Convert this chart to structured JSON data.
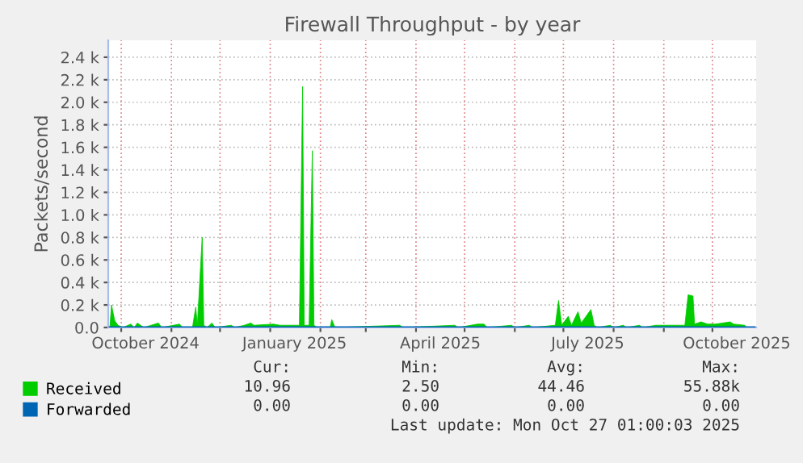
{
  "chart_data": {
    "type": "area",
    "title": "Firewall Throughput - by year",
    "ylabel": "Packets/second",
    "series": [
      {
        "name": "Received",
        "color": "#00cc00",
        "x": [
          "2024-09-24",
          "2024-09-25",
          "2024-09-27",
          "2024-09-29",
          "2024-10-02",
          "2024-10-07",
          "2024-10-09",
          "2024-10-11",
          "2024-10-13",
          "2024-10-15",
          "2024-10-24",
          "2024-10-26",
          "2024-11-06",
          "2024-11-08",
          "2024-11-14",
          "2024-11-16",
          "2024-11-17",
          "2024-11-20",
          "2024-11-21",
          "2024-11-23",
          "2024-11-26",
          "2024-11-28",
          "2024-12-08",
          "2024-12-10",
          "2024-12-16",
          "2024-12-20",
          "2024-12-22",
          "2025-01-03",
          "2025-01-07",
          "2025-01-19",
          "2025-01-21",
          "2025-01-22",
          "2025-01-25",
          "2025-01-27",
          "2025-01-28",
          "2025-01-30",
          "2025-02-07",
          "2025-02-08",
          "2025-02-10",
          "2025-03-22",
          "2025-03-24",
          "2025-04-25",
          "2025-04-27",
          "2025-05-09",
          "2025-05-13",
          "2025-05-15",
          "2025-05-30",
          "2025-06-01",
          "2025-06-10",
          "2025-06-12",
          "2025-06-26",
          "2025-06-28",
          "2025-06-30",
          "2025-07-04",
          "2025-07-06",
          "2025-07-10",
          "2025-07-12",
          "2025-07-18",
          "2025-07-20",
          "2025-07-22",
          "2025-07-30",
          "2025-08-01",
          "2025-08-07",
          "2025-08-09",
          "2025-08-17",
          "2025-08-19",
          "2025-08-27",
          "2025-09-14",
          "2025-09-16",
          "2025-09-19",
          "2025-09-20",
          "2025-09-24",
          "2025-09-28",
          "2025-10-03",
          "2025-10-12",
          "2025-10-14",
          "2025-10-21",
          "2025-10-22"
        ],
        "values": [
          0,
          200,
          60,
          20,
          0,
          30,
          0,
          40,
          20,
          0,
          40,
          0,
          30,
          0,
          0,
          180,
          20,
          800,
          20,
          0,
          40,
          0,
          20,
          0,
          20,
          40,
          20,
          30,
          20,
          20,
          2140,
          20,
          20,
          1570,
          20,
          0,
          0,
          70,
          0,
          20,
          0,
          20,
          0,
          30,
          30,
          0,
          20,
          0,
          20,
          0,
          20,
          240,
          20,
          100,
          20,
          140,
          40,
          160,
          20,
          0,
          20,
          0,
          20,
          0,
          20,
          0,
          20,
          20,
          290,
          280,
          30,
          50,
          30,
          30,
          50,
          30,
          20,
          0
        ]
      },
      {
        "name": "Forwarded",
        "color": "#0066b3",
        "type": "line",
        "x": [
          "2024-09-24",
          "2025-10-27"
        ],
        "values": [
          0,
          0
        ]
      }
    ],
    "xlim": [
      "2024-09-23",
      "2025-10-28"
    ],
    "xticks": [
      {
        "value": "2024-10-01",
        "label": null
      },
      {
        "value": "2024-10-16",
        "label": "October 2024"
      },
      {
        "value": "2024-11-01",
        "label": null
      },
      {
        "value": "2024-12-01",
        "label": null
      },
      {
        "value": "2025-01-01",
        "label": null
      },
      {
        "value": "2025-01-16",
        "label": "January 2025"
      },
      {
        "value": "2025-02-01",
        "label": null
      },
      {
        "value": "2025-03-01",
        "label": null
      },
      {
        "value": "2025-04-01",
        "label": null
      },
      {
        "value": "2025-04-16",
        "label": "April 2025"
      },
      {
        "value": "2025-05-01",
        "label": null
      },
      {
        "value": "2025-06-01",
        "label": null
      },
      {
        "value": "2025-07-01",
        "label": null
      },
      {
        "value": "2025-07-16",
        "label": "July 2025"
      },
      {
        "value": "2025-08-01",
        "label": null
      },
      {
        "value": "2025-09-01",
        "label": null
      },
      {
        "value": "2025-10-01",
        "label": null
      },
      {
        "value": "2025-10-16",
        "label": "October 2025"
      }
    ],
    "ylim": [
      0,
      2550
    ],
    "yticks": [
      {
        "value": 0,
        "label": "0.0"
      },
      {
        "value": 200,
        "label": "0.2 k"
      },
      {
        "value": 400,
        "label": "0.4 k"
      },
      {
        "value": 600,
        "label": "0.6 k"
      },
      {
        "value": 800,
        "label": "0.8 k"
      },
      {
        "value": 1000,
        "label": "1.0 k"
      },
      {
        "value": 1200,
        "label": "1.2 k"
      },
      {
        "value": 1400,
        "label": "1.4 k"
      },
      {
        "value": 1600,
        "label": "1.6 k"
      },
      {
        "value": 1800,
        "label": "1.8 k"
      },
      {
        "value": 2000,
        "label": "2.0 k"
      },
      {
        "value": 2200,
        "label": "2.2 k"
      },
      {
        "value": 2400,
        "label": "2.4 k"
      }
    ],
    "grid": true,
    "legend": "bottom left",
    "annotations": [
      "Cur:",
      "Min:",
      "Avg:",
      "Max:",
      "10.96",
      "2.50",
      "44.46",
      "55.88k",
      "0.00",
      "0.00",
      "0.00",
      "0.00",
      "Last update: Mon Oct 27 01:00:03 2025"
    ]
  }
}
